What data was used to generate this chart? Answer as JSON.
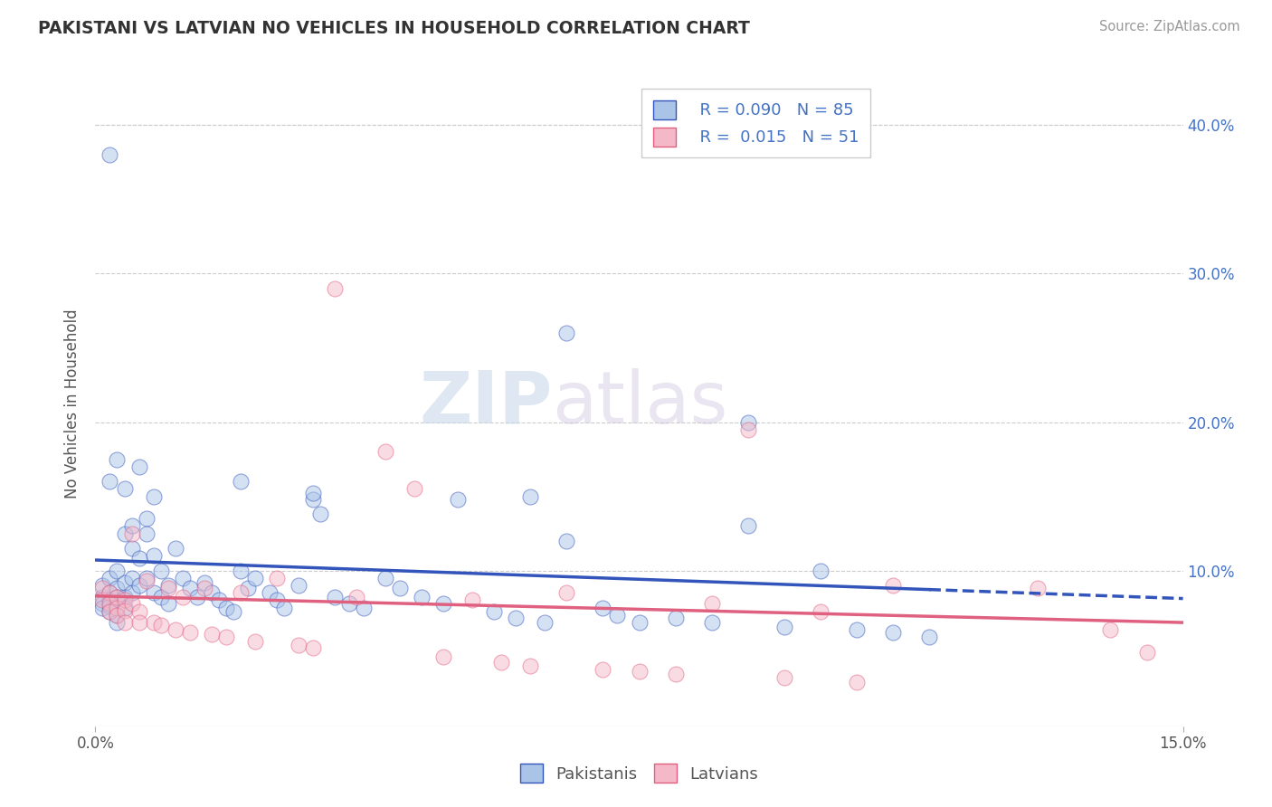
{
  "title": "PAKISTANI VS LATVIAN NO VEHICLES IN HOUSEHOLD CORRELATION CHART",
  "source": "Source: ZipAtlas.com",
  "ylabel": "No Vehicles in Household",
  "xlim": [
    0.0,
    0.15
  ],
  "ylim": [
    -0.005,
    0.43
  ],
  "pakistani_R": 0.09,
  "pakistani_N": 85,
  "latvian_R": 0.015,
  "latvian_N": 51,
  "pakistani_color": "#aac4e8",
  "latvian_color": "#f5b8c8",
  "pakistani_line_color": "#3355bb",
  "latvian_line_color": "#e06080",
  "watermark_zip": "ZIP",
  "watermark_atlas": "atlas",
  "ytick_positions": [
    0.1,
    0.2,
    0.3,
    0.4
  ],
  "ytick_labels": [
    "10.0%",
    "20.0%",
    "30.0%",
    "40.0%"
  ],
  "pakistani_x": [
    0.001,
    0.001,
    0.001,
    0.001,
    0.002,
    0.002,
    0.002,
    0.002,
    0.002,
    0.002,
    0.003,
    0.003,
    0.003,
    0.003,
    0.003,
    0.003,
    0.004,
    0.004,
    0.004,
    0.004,
    0.004,
    0.005,
    0.005,
    0.005,
    0.005,
    0.006,
    0.006,
    0.006,
    0.007,
    0.007,
    0.007,
    0.008,
    0.008,
    0.008,
    0.009,
    0.009,
    0.01,
    0.01,
    0.011,
    0.012,
    0.013,
    0.014,
    0.015,
    0.016,
    0.017,
    0.018,
    0.019,
    0.02,
    0.021,
    0.022,
    0.024,
    0.025,
    0.026,
    0.028,
    0.03,
    0.031,
    0.033,
    0.035,
    0.037,
    0.04,
    0.042,
    0.045,
    0.048,
    0.05,
    0.055,
    0.058,
    0.06,
    0.062,
    0.065,
    0.07,
    0.072,
    0.075,
    0.08,
    0.085,
    0.09,
    0.095,
    0.1,
    0.105,
    0.11,
    0.115,
    0.002,
    0.02,
    0.03,
    0.065,
    0.09
  ],
  "pakistani_y": [
    0.082,
    0.078,
    0.09,
    0.075,
    0.16,
    0.095,
    0.085,
    0.08,
    0.076,
    0.072,
    0.175,
    0.1,
    0.088,
    0.082,
    0.07,
    0.065,
    0.155,
    0.125,
    0.092,
    0.082,
    0.075,
    0.13,
    0.115,
    0.095,
    0.085,
    0.17,
    0.108,
    0.09,
    0.135,
    0.125,
    0.095,
    0.15,
    0.11,
    0.085,
    0.1,
    0.082,
    0.09,
    0.078,
    0.115,
    0.095,
    0.088,
    0.082,
    0.092,
    0.085,
    0.08,
    0.075,
    0.072,
    0.1,
    0.088,
    0.095,
    0.085,
    0.08,
    0.075,
    0.09,
    0.148,
    0.138,
    0.082,
    0.078,
    0.075,
    0.095,
    0.088,
    0.082,
    0.078,
    0.148,
    0.072,
    0.068,
    0.15,
    0.065,
    0.12,
    0.075,
    0.07,
    0.065,
    0.068,
    0.065,
    0.2,
    0.062,
    0.1,
    0.06,
    0.058,
    0.055,
    0.38,
    0.16,
    0.152,
    0.26,
    0.13
  ],
  "latvian_x": [
    0.001,
    0.001,
    0.002,
    0.002,
    0.002,
    0.003,
    0.003,
    0.003,
    0.004,
    0.004,
    0.004,
    0.005,
    0.005,
    0.006,
    0.006,
    0.007,
    0.008,
    0.009,
    0.01,
    0.011,
    0.012,
    0.013,
    0.015,
    0.016,
    0.018,
    0.02,
    0.022,
    0.025,
    0.028,
    0.03,
    0.033,
    0.036,
    0.04,
    0.044,
    0.048,
    0.052,
    0.056,
    0.06,
    0.065,
    0.07,
    0.075,
    0.08,
    0.085,
    0.09,
    0.095,
    0.1,
    0.105,
    0.11,
    0.13,
    0.14,
    0.145
  ],
  "latvian_y": [
    0.088,
    0.08,
    0.085,
    0.078,
    0.072,
    0.082,
    0.075,
    0.07,
    0.08,
    0.073,
    0.065,
    0.125,
    0.078,
    0.072,
    0.065,
    0.093,
    0.065,
    0.063,
    0.088,
    0.06,
    0.082,
    0.058,
    0.088,
    0.057,
    0.055,
    0.085,
    0.052,
    0.095,
    0.05,
    0.048,
    0.29,
    0.082,
    0.18,
    0.155,
    0.042,
    0.08,
    0.038,
    0.036,
    0.085,
    0.033,
    0.032,
    0.03,
    0.078,
    0.195,
    0.028,
    0.072,
    0.025,
    0.09,
    0.088,
    0.06,
    0.045
  ]
}
